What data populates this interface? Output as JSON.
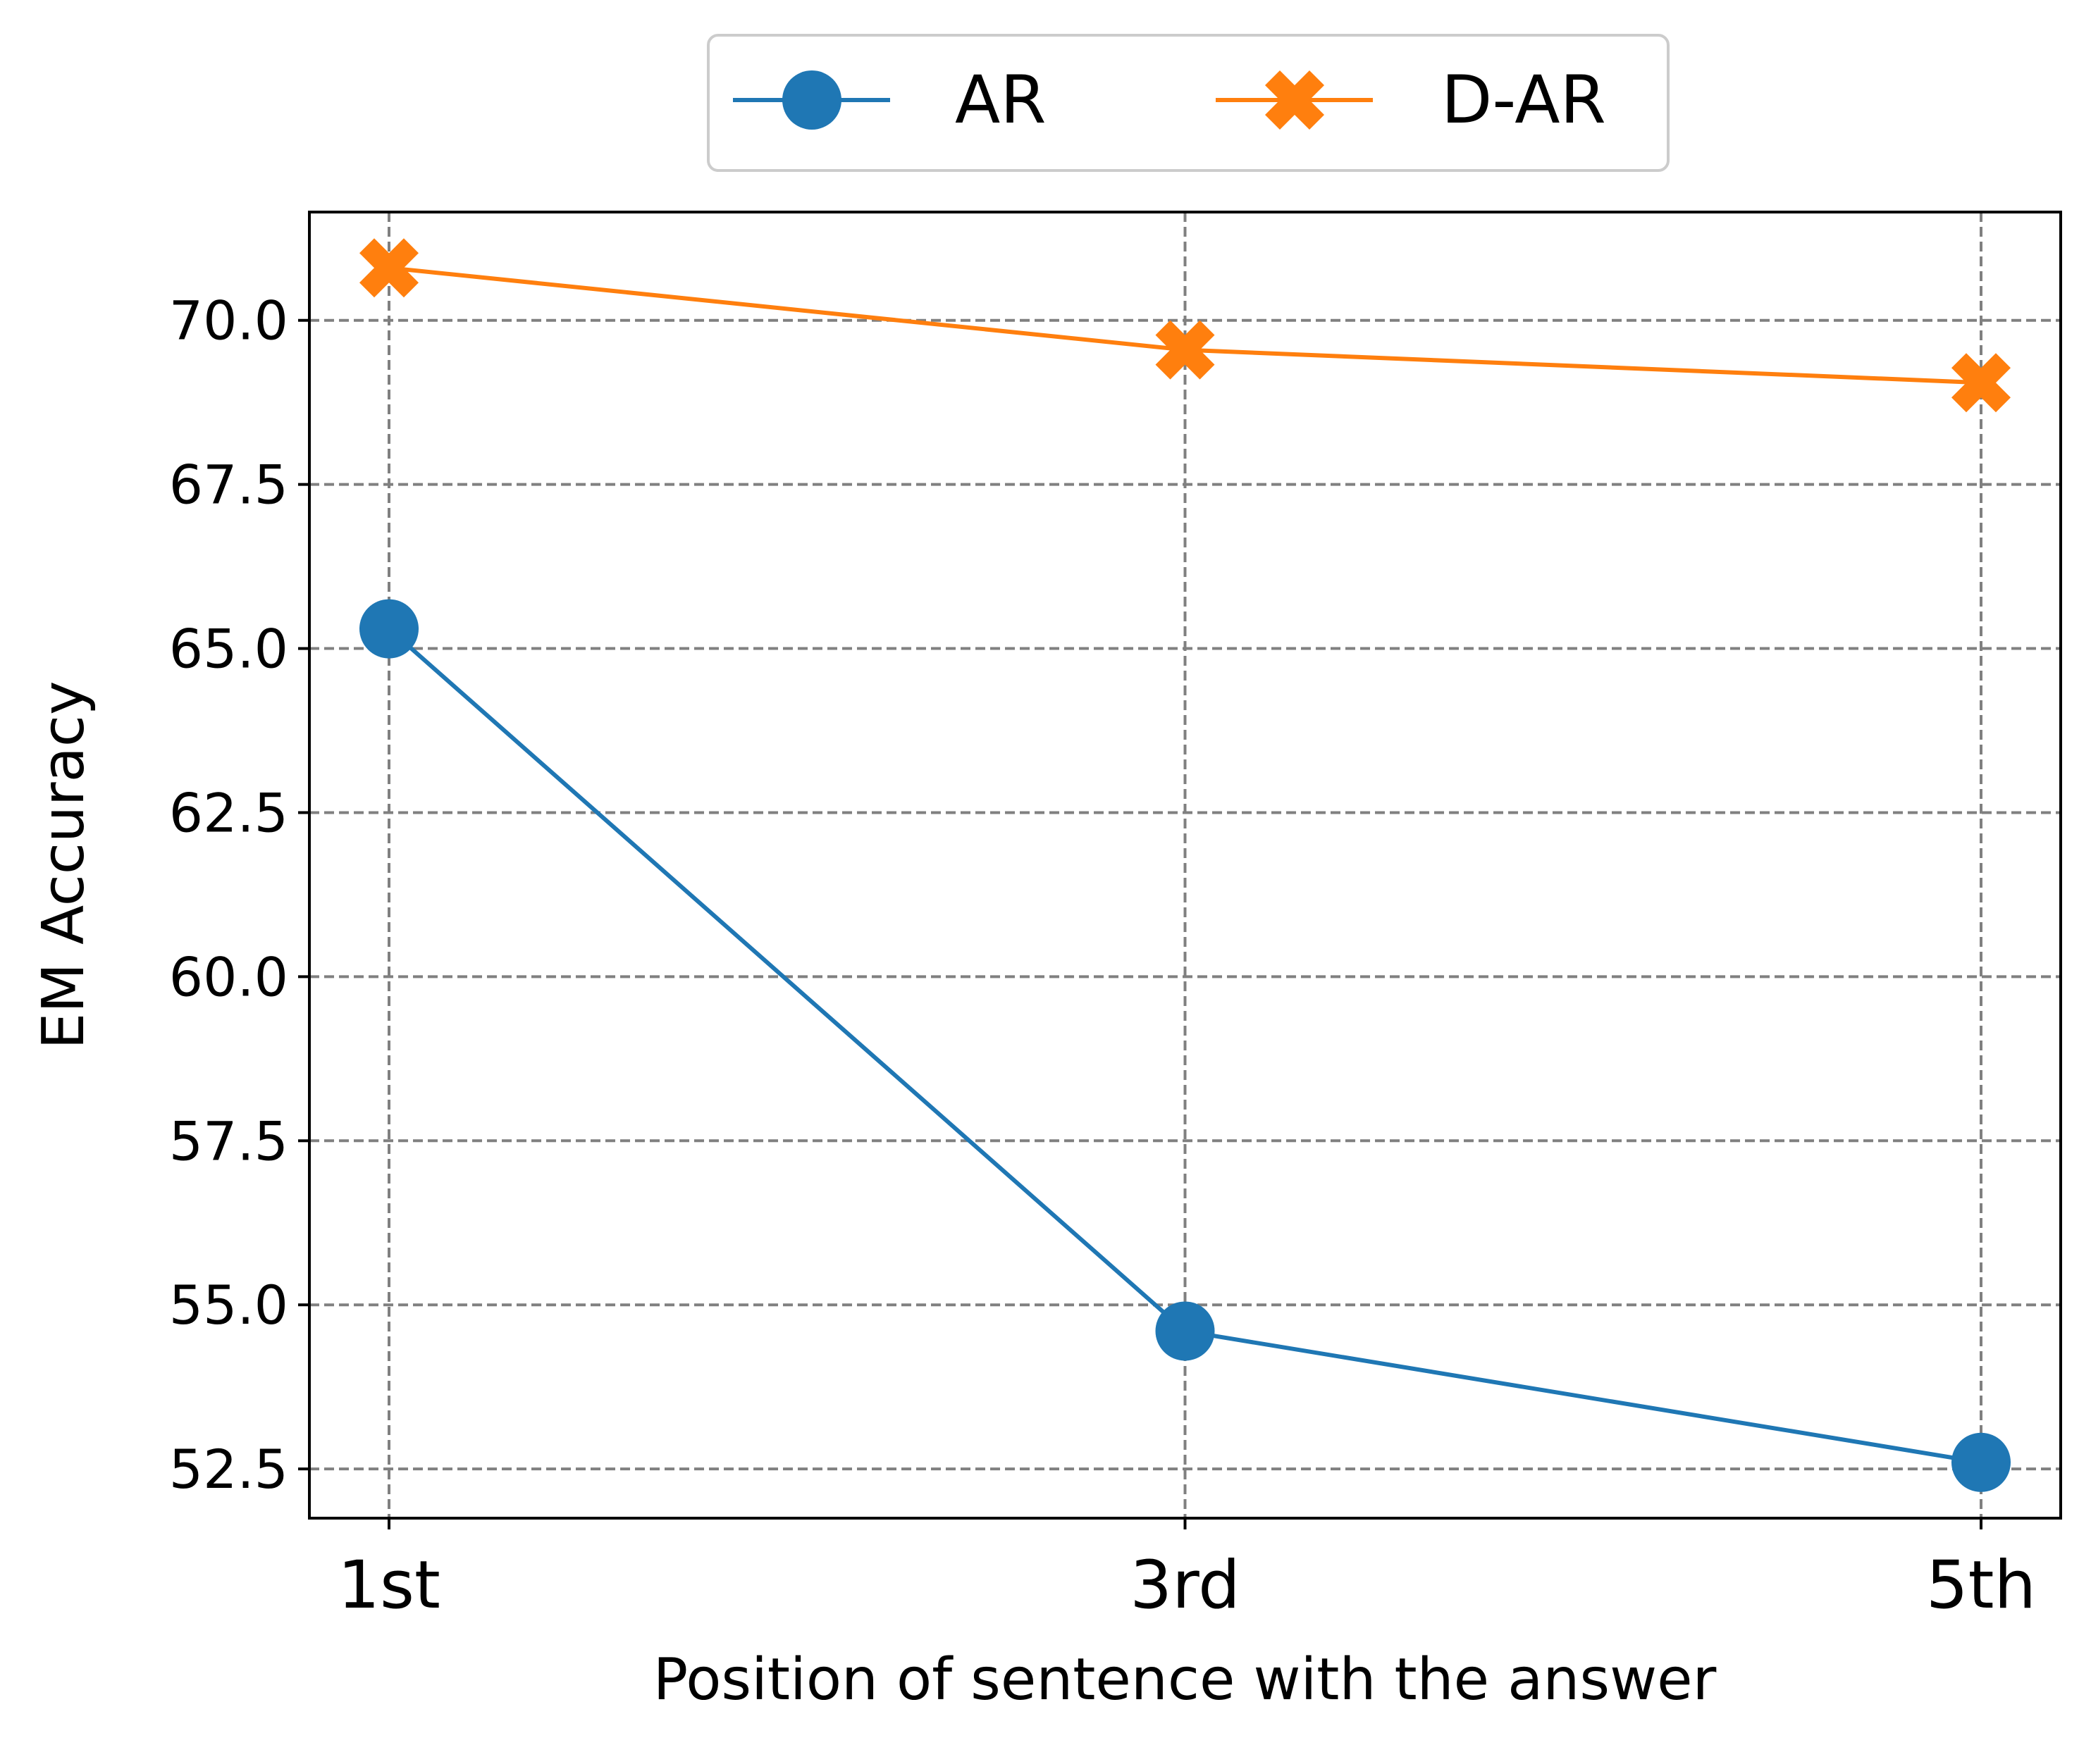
{
  "chart_data": {
    "type": "line",
    "categories": [
      "1st",
      "3rd",
      "5th"
    ],
    "series": [
      {
        "name": "AR",
        "values": [
          65.3,
          54.6,
          52.6
        ],
        "color": "#1f77b4",
        "marker": "circle"
      },
      {
        "name": "D-AR",
        "values": [
          70.8,
          69.55,
          69.05
        ],
        "color": "#ff7f0e",
        "marker": "x"
      }
    ],
    "xlabel": "Position of sentence with the answer",
    "ylabel": "EM Accuracy",
    "ylim": [
      51.75,
      71.65
    ],
    "yticks": [
      "52.5",
      "55.0",
      "57.5",
      "60.0",
      "62.5",
      "65.0",
      "67.5",
      "70.0"
    ],
    "grid": true,
    "legend": "top-center"
  }
}
